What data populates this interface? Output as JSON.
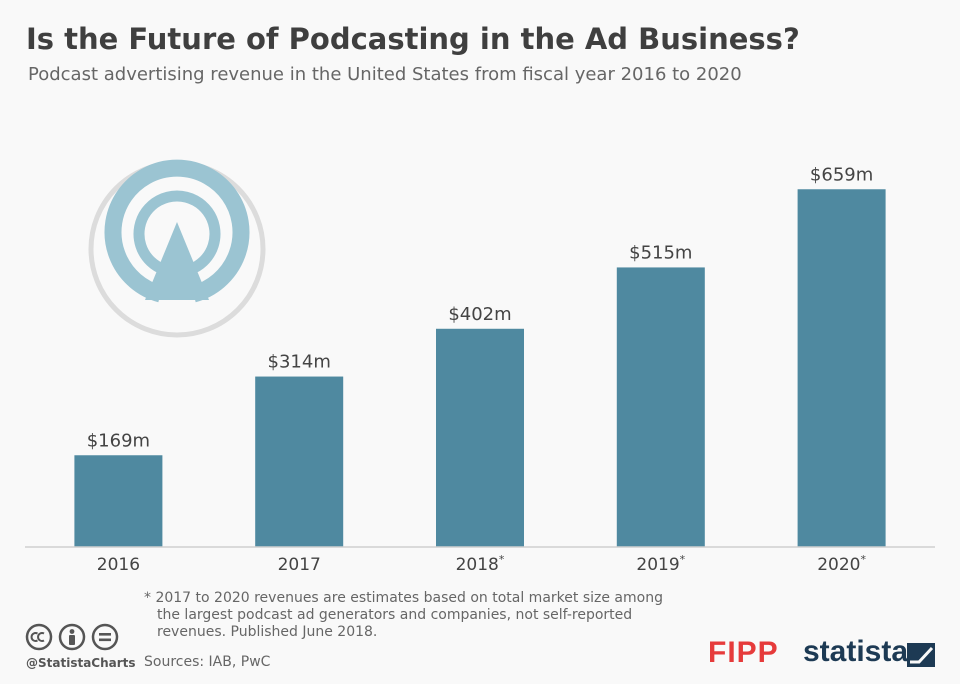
{
  "header": {
    "title": "Is the Future of Podcasting in the Ad Business?",
    "subtitle": "Podcast advertising revenue in the United States from fiscal year 2016 to 2020"
  },
  "chart_data": {
    "type": "bar",
    "title": "Is the Future of Podcasting in the Ad Business?",
    "subtitle": "Podcast advertising revenue in the United States from fiscal year 2016 to 2020",
    "categories": [
      "2016",
      "2017",
      "2018*",
      "2019*",
      "2020*"
    ],
    "values": [
      169,
      314,
      402,
      515,
      659
    ],
    "data_labels": [
      "$169m",
      "$314m",
      "$402m",
      "$515m",
      "$659m"
    ],
    "xlabel": "",
    "ylabel": "",
    "ylim": [
      0,
      700
    ],
    "grid": false,
    "legend": "none",
    "bar_color": "#4f89a0"
  },
  "footer": {
    "footnote_line1": "* 2017 to 2020 revenues are estimates based on total market size among",
    "footnote_rest": "the largest podcast ad generators and companies, not self-reported revenues. Published June 2018.",
    "sources": "Sources: IAB, PwC",
    "handle": "@StatistaCharts",
    "fipp_logo": "FIPP",
    "statista_logo": "statista"
  },
  "icons": [
    "podcast-icon",
    "cc-icon",
    "by-icon",
    "nd-icon",
    "statista-mark-icon"
  ]
}
